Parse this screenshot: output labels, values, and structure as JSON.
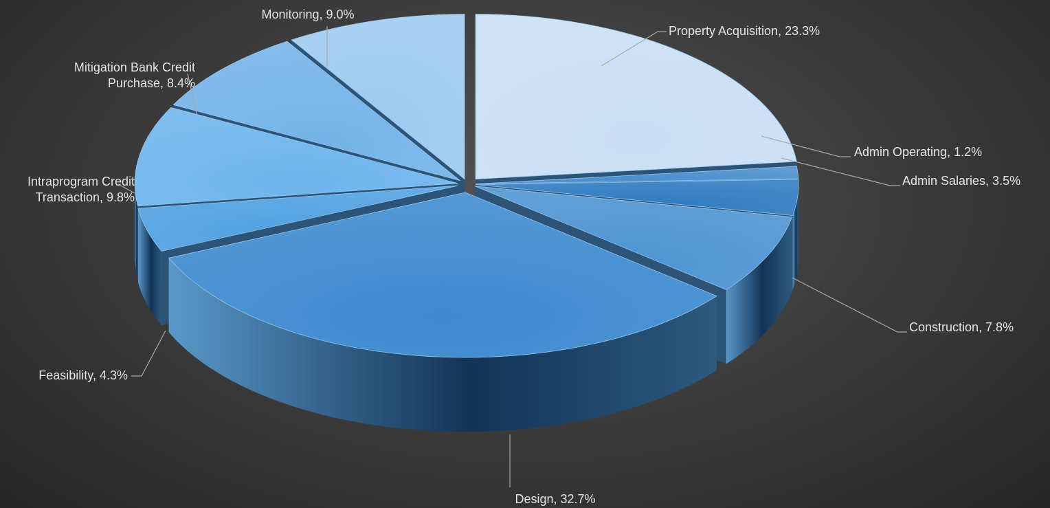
{
  "chart_data": {
    "type": "pie",
    "variant": "3d-exploded",
    "legend": "none",
    "slices": [
      {
        "label": "Property Acquisition",
        "value": 23.3,
        "display": "Property Acquisition, 23.3%",
        "color": "#c9dff5"
      },
      {
        "label": "Admin Operating",
        "value": 1.2,
        "display": "Admin Operating, 1.2%",
        "color": "#4a8fce"
      },
      {
        "label": "Admin Salaries",
        "value": 3.5,
        "display": "Admin Salaries, 3.5%",
        "color": "#2d7ac0"
      },
      {
        "label": "Construction",
        "value": 7.8,
        "display": "Construction, 7.8%",
        "color": "#4d94d2"
      },
      {
        "label": "Design",
        "value": 32.7,
        "display": "Design, 32.7%",
        "color": "#3d8ad0"
      },
      {
        "label": "Feasibility",
        "value": 4.3,
        "display": "Feasibility, 4.3%",
        "color": "#4fa1e2"
      },
      {
        "label": "Intraprogram Credit Transaction",
        "value": 9.8,
        "display": [
          "Intraprogram Credit",
          "Transaction, 9.8%"
        ],
        "color": "#6db5ec"
      },
      {
        "label": "Mitigation Bank Credit Purchase",
        "value": 8.4,
        "display": [
          "Mitigation Bank Credit",
          "Purchase, 8.4%"
        ],
        "color": "#74b3e8"
      },
      {
        "label": "Monitoring",
        "value": 9.0,
        "display": "Monitoring, 9.0%",
        "color": "#9ccaf0"
      }
    ]
  }
}
